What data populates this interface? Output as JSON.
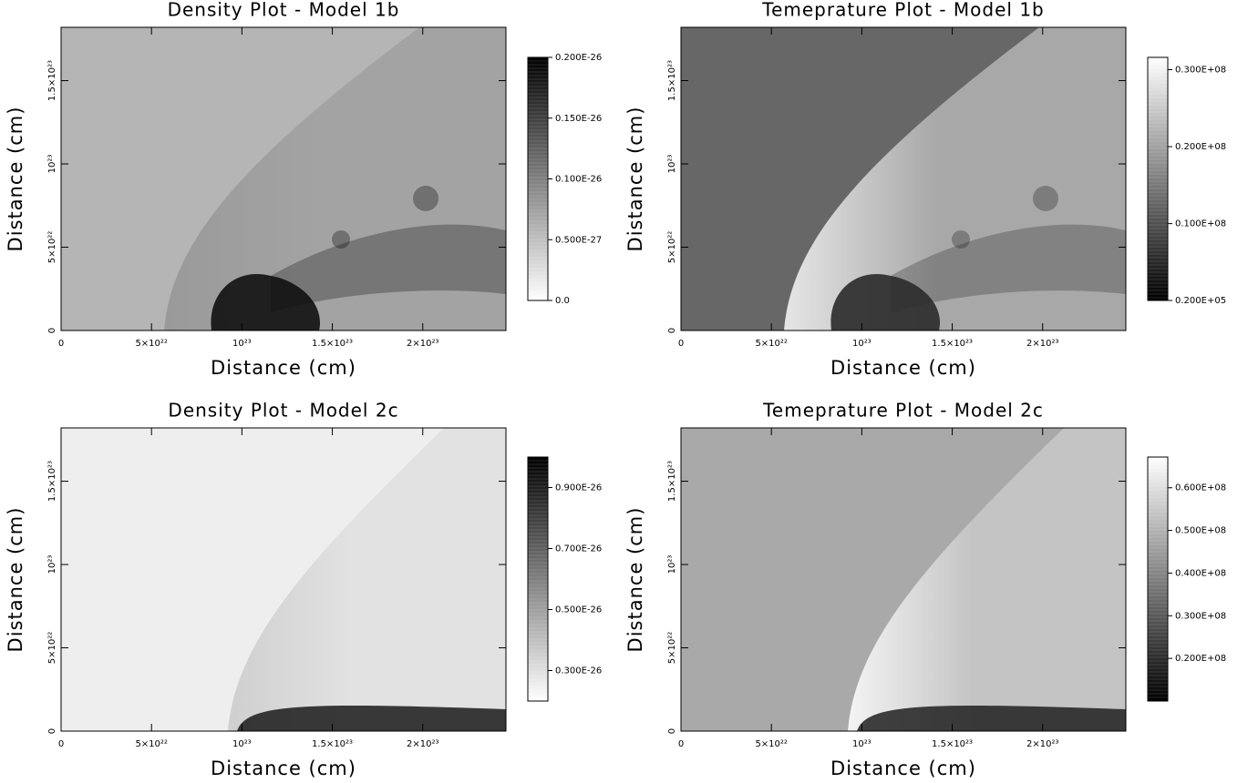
{
  "chart_data": [
    {
      "type": "heatmap",
      "title": "Density Plot - Model 1b",
      "xlabel": "Distance (cm)",
      "ylabel": "Distance (cm)",
      "xlim": [
        0,
        2.46e+23
      ],
      "ylim": [
        0,
        1.82e+23
      ],
      "xticks": [
        0,
        {
          "value": 5e+22,
          "label": "5×10²²"
        },
        {
          "value": 1e+23,
          "label": "10²³"
        },
        {
          "value": 1.5e+23,
          "label": "1.5×10²³"
        },
        {
          "value": 2e+23,
          "label": "2×10²³"
        }
      ],
      "yticks": [
        0,
        {
          "value": 5e+22,
          "label": "5×10²²"
        },
        {
          "value": 1e+23,
          "label": "10²³"
        },
        {
          "value": 1.5e+23,
          "label": "1.5×10²³"
        }
      ],
      "colorbar": {
        "colormap": "Greys",
        "clim": [
          0,
          2e-27
        ],
        "ticks": [
          {
            "value": 2e-27,
            "label": "0.200E-26"
          },
          {
            "value": 1.5e-27,
            "label": "0.150E-26"
          },
          {
            "value": 1e-27,
            "label": "0.100E-26"
          },
          {
            "value": 5e-28,
            "label": "0.500E-27"
          },
          {
            "value": 0,
            "label": "0.0"
          }
        ]
      }
    },
    {
      "type": "heatmap",
      "title": "Temeprature Plot - Model 1b",
      "xlabel": "Distance (cm)",
      "ylabel": "Distance (cm)",
      "xlim": [
        0,
        2.46e+23
      ],
      "ylim": [
        0,
        1.82e+23
      ],
      "xticks": [
        0,
        {
          "value": 5e+22,
          "label": "5×10²²"
        },
        {
          "value": 1e+23,
          "label": "10²³"
        },
        {
          "value": 1.5e+23,
          "label": "1.5×10²³"
        },
        {
          "value": 2e+23,
          "label": "2×10²³"
        }
      ],
      "yticks": [
        0,
        {
          "value": 5e+22,
          "label": "5×10²²"
        },
        {
          "value": 1e+23,
          "label": "10²³"
        },
        {
          "value": 1.5e+23,
          "label": "1.5×10²³"
        }
      ],
      "colorbar": {
        "colormap": "gray",
        "clim": [
          20000,
          31600000.0
        ],
        "ticks": [
          {
            "value": 30000000.0,
            "label": "0.300E+08"
          },
          {
            "value": 20000000.0,
            "label": "0.200E+08"
          },
          {
            "value": 10000000.0,
            "label": "0.100E+08"
          },
          {
            "value": 20000,
            "label": "0.200E+05"
          }
        ]
      }
    },
    {
      "type": "heatmap",
      "title": "Density Plot - Model 2c",
      "xlabel": "Distance (cm)",
      "ylabel": "Distance (cm)",
      "xlim": [
        0,
        2.46e+23
      ],
      "ylim": [
        0,
        1.82e+23
      ],
      "xticks": [
        0,
        {
          "value": 5e+22,
          "label": "5×10²²"
        },
        {
          "value": 1e+23,
          "label": "10²³"
        },
        {
          "value": 1.5e+23,
          "label": "1.5×10²³"
        },
        {
          "value": 2e+23,
          "label": "2×10²³"
        }
      ],
      "yticks": [
        0,
        {
          "value": 5e+22,
          "label": "5×10²²"
        },
        {
          "value": 1e+23,
          "label": "10²³"
        },
        {
          "value": 1.5e+23,
          "label": "1.5×10²³"
        }
      ],
      "colorbar": {
        "colormap": "Greys",
        "clim": [
          2e-27,
          1e-26
        ],
        "ticks": [
          {
            "value": 9e-27,
            "label": "0.900E-26"
          },
          {
            "value": 7e-27,
            "label": "0.700E-26"
          },
          {
            "value": 5e-27,
            "label": "0.500E-26"
          },
          {
            "value": 3e-27,
            "label": "0.300E-26"
          }
        ]
      }
    },
    {
      "type": "heatmap",
      "title": "Temeprature Plot - Model 2c",
      "xlabel": "Distance (cm)",
      "ylabel": "Distance (cm)",
      "xlim": [
        0,
        2.46e+23
      ],
      "ylim": [
        0,
        1.82e+23
      ],
      "xticks": [
        0,
        {
          "value": 5e+22,
          "label": "5×10²²"
        },
        {
          "value": 1e+23,
          "label": "10²³"
        },
        {
          "value": 1.5e+23,
          "label": "1.5×10²³"
        },
        {
          "value": 2e+23,
          "label": "2×10²³"
        }
      ],
      "yticks": [
        0,
        {
          "value": 5e+22,
          "label": "5×10²²"
        },
        {
          "value": 1e+23,
          "label": "10²³"
        },
        {
          "value": 1.5e+23,
          "label": "1.5×10²³"
        }
      ],
      "colorbar": {
        "colormap": "gray",
        "clim": [
          10000000.0,
          67200000.0
        ],
        "ticks": [
          {
            "value": 60000000.0,
            "label": "0.600E+08"
          },
          {
            "value": 50000000.0,
            "label": "0.500E+08"
          },
          {
            "value": 40000000.0,
            "label": "0.400E+08"
          },
          {
            "value": 30000000.0,
            "label": "0.300E+08"
          },
          {
            "value": 20000000.0,
            "label": "0.200E+08"
          }
        ]
      }
    }
  ]
}
